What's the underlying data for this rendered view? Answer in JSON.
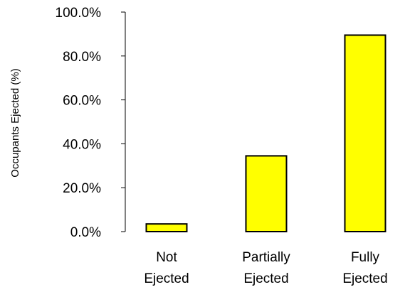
{
  "chart_data": {
    "type": "bar",
    "title": "",
    "xlabel": "",
    "ylabel": "Occupants Ejected (%)",
    "categories": [
      [
        "Not",
        "Ejected"
      ],
      [
        "Partially",
        "Ejected"
      ],
      [
        "Fully",
        "Ejected"
      ]
    ],
    "values": [
      3.5,
      34.5,
      89.5
    ],
    "ylim": [
      0,
      100
    ],
    "yticks": [
      0,
      20,
      40,
      60,
      80,
      100
    ],
    "ytick_labels": [
      "0.0%",
      "20.0%",
      "40.0%",
      "60.0%",
      "80.0%",
      "100.0%"
    ],
    "grid": false,
    "legend": "none",
    "bar_color": "#FFFF00",
    "bar_edge_color": "#000000"
  }
}
